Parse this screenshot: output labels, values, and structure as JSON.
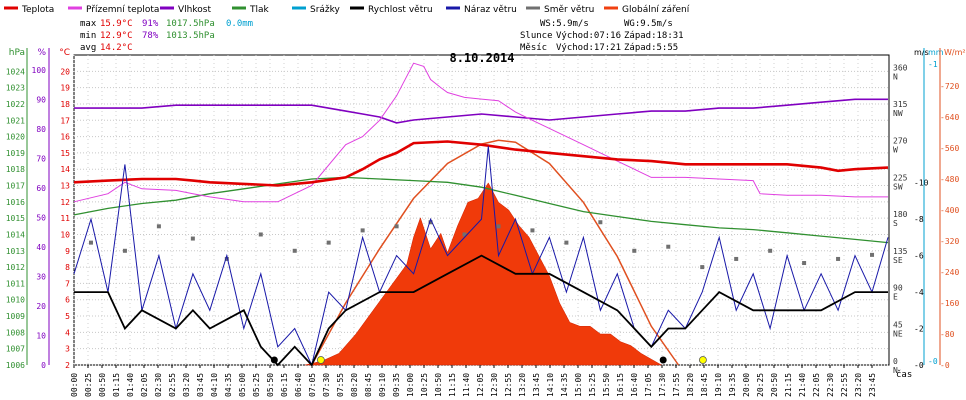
{
  "chart_data": {
    "type": "line",
    "title": "8.10.2014",
    "xlabel": "čas",
    "legend": [
      {
        "key": "temp",
        "label": "Teplota",
        "color": "#e00000"
      },
      {
        "key": "feels",
        "label": "Přízemní teplota",
        "color": "#e040e0"
      },
      {
        "key": "hum",
        "label": "Vlhkost",
        "color": "#8000c0"
      },
      {
        "key": "press",
        "label": "Tlak",
        "color": "#309030"
      },
      {
        "key": "rain",
        "label": "Srážky",
        "color": "#00a0d0"
      },
      {
        "key": "wind",
        "label": "Rychlost větru",
        "color": "#000000"
      },
      {
        "key": "gust",
        "label": "Náraz větru",
        "color": "#1818a8"
      },
      {
        "key": "dir",
        "label": "Směr větru",
        "color": "#707070"
      },
      {
        "key": "solar",
        "label": "Globální záření",
        "color": "#f04010"
      }
    ],
    "stats": {
      "max_label": "max",
      "max_temp": "15.9°C",
      "max_hum": "91%",
      "max_press": "1017.5hPa",
      "max_rain": "0.0mm",
      "min_label": "min",
      "min_temp": "12.9°C",
      "min_hum": "78%",
      "min_press": "1013.5hPa",
      "avg_label": "avg",
      "avg_temp": "14.2°C",
      "ws": "WS:5.9m/s",
      "wg": "WG:9.5m/s",
      "sun_label": "Slunce",
      "sun_rise": "Východ:07:16",
      "sun_set": "Západ:18:31",
      "moon_label": "Měsíc",
      "moon_rise": "Východ:17:21",
      "moon_set": "Západ:5:55"
    },
    "axes": {
      "hpa": {
        "unit": "hPa",
        "min": 1006,
        "max": 1025,
        "ticks": [
          1006,
          1007,
          1008,
          1009,
          1010,
          1011,
          1012,
          1013,
          1014,
          1015,
          1016,
          1017,
          1018,
          1019,
          1020,
          1021,
          1022,
          1023,
          1024
        ],
        "color": "#309030"
      },
      "pct": {
        "unit": "%",
        "min": 0,
        "max": 105,
        "ticks": [
          0,
          10,
          20,
          30,
          40,
          50,
          60,
          70,
          80,
          90,
          100
        ],
        "color": "#8000c0"
      },
      "deg": {
        "unit": "°C",
        "min": 2,
        "max": 21,
        "ticks": [
          2,
          3,
          4,
          5,
          6,
          7,
          8,
          9,
          10,
          11,
          12,
          13,
          14,
          15,
          16,
          17,
          18,
          19,
          20
        ],
        "color": "#e00000"
      },
      "dir": {
        "min": 0,
        "max": 380,
        "ticks": [
          {
            "v": 0,
            "l": "0",
            "s": "N"
          },
          {
            "v": 45,
            "l": "45",
            "s": "NE"
          },
          {
            "v": 90,
            "l": "90",
            "s": "E"
          },
          {
            "v": 135,
            "l": "135",
            "s": "SE"
          },
          {
            "v": 180,
            "l": "180",
            "s": "S"
          },
          {
            "v": 225,
            "l": "225",
            "s": "SW"
          },
          {
            "v": 270,
            "l": "270",
            "s": "W"
          },
          {
            "v": 315,
            "l": "315",
            "s": "NW"
          },
          {
            "v": 360,
            "l": "360",
            "s": "N"
          }
        ]
      },
      "ms": {
        "unit": "m/s",
        "min": 0,
        "max": 17,
        "ticks": [
          0,
          2,
          4,
          6,
          8,
          10
        ],
        "color": "#000000"
      },
      "mm": {
        "unit": "mm",
        "ticks_labels": [
          "0",
          "1"
        ],
        "color": "#00a0d0"
      },
      "wm2": {
        "unit": "W/m²",
        "min": 0,
        "max": 800,
        "ticks": [
          0,
          80,
          160,
          240,
          320,
          400,
          480,
          560,
          640,
          720
        ],
        "color": "#e05020"
      }
    },
    "x_ticks": [
      "00:00",
      "00:25",
      "00:50",
      "01:15",
      "01:40",
      "02:05",
      "02:30",
      "02:55",
      "03:20",
      "03:45",
      "04:10",
      "04:35",
      "05:00",
      "05:25",
      "05:50",
      "06:15",
      "06:40",
      "07:05",
      "07:30",
      "07:55",
      "08:20",
      "08:45",
      "09:10",
      "09:35",
      "10:00",
      "10:25",
      "10:50",
      "11:15",
      "11:40",
      "12:05",
      "12:30",
      "12:55",
      "13:20",
      "13:45",
      "14:10",
      "14:35",
      "15:00",
      "15:25",
      "15:50",
      "16:15",
      "16:40",
      "17:05",
      "17:30",
      "17:55",
      "18:20",
      "18:45",
      "19:10",
      "19:35",
      "20:00",
      "20:25",
      "20:50",
      "21:15",
      "21:40",
      "22:05",
      "22:30",
      "22:55",
      "23:20",
      "23:45"
    ],
    "series": {
      "temp": {
        "unit": "°C",
        "x_hours": [
          0,
          1,
          2,
          3,
          3.5,
          4,
          5,
          6,
          7,
          8,
          8.5,
          9,
          9.5,
          10,
          11,
          12,
          13,
          14,
          15,
          16,
          17,
          18,
          19,
          20,
          21,
          22,
          22.5,
          23,
          23.97
        ],
        "values": [
          13.2,
          13.3,
          13.4,
          13.4,
          13.3,
          13.2,
          13.1,
          13.0,
          13.2,
          13.5,
          14.0,
          14.6,
          15.0,
          15.6,
          15.7,
          15.5,
          15.2,
          15.0,
          14.8,
          14.6,
          14.5,
          14.3,
          14.3,
          14.3,
          14.3,
          14.1,
          13.9,
          14.0,
          14.1
        ]
      },
      "feels": {
        "unit": "°C",
        "x_hours": [
          0,
          1,
          1.5,
          2,
          3,
          3.5,
          4,
          5,
          6,
          7,
          8,
          8.5,
          9,
          9.5,
          10,
          10.3,
          10.5,
          10.8,
          11,
          11.5,
          12,
          12.5,
          13,
          13.5,
          14,
          14.5,
          15,
          15.5,
          16,
          16.5,
          17,
          17.5,
          18,
          19,
          20,
          20.2,
          21,
          22,
          23,
          23.97
        ],
        "values": [
          12.0,
          12.5,
          13.2,
          12.8,
          12.7,
          12.5,
          12.3,
          12.0,
          12.0,
          13.0,
          15.5,
          16.0,
          17.0,
          18.5,
          20.5,
          20.3,
          19.5,
          19.0,
          18.7,
          18.4,
          18.3,
          18.2,
          17.5,
          17.0,
          16.5,
          16.0,
          15.5,
          15.0,
          14.5,
          14.0,
          13.5,
          13.5,
          13.5,
          13.4,
          13.3,
          12.5,
          12.4,
          12.4,
          12.3,
          12.3
        ]
      },
      "hum": {
        "unit": "%",
        "x_hours": [
          0,
          2,
          3,
          4,
          5,
          6,
          7,
          8,
          8.5,
          9,
          9.5,
          10,
          11,
          12,
          13,
          14,
          15,
          16,
          17,
          18,
          19,
          20,
          21,
          22,
          23,
          23.97
        ],
        "values": [
          87,
          87,
          88,
          88,
          88,
          88,
          88,
          86,
          85,
          84,
          82,
          83,
          84,
          85,
          84,
          83,
          84,
          85,
          86,
          86,
          87,
          87,
          88,
          89,
          90,
          90
        ]
      },
      "press": {
        "unit": "hPa",
        "x_hours": [
          0,
          1,
          2,
          3,
          4,
          5,
          6,
          7,
          8,
          9,
          10,
          11,
          12,
          13,
          14,
          15,
          16,
          17,
          18,
          19,
          20,
          21,
          22,
          23,
          23.97
        ],
        "values": [
          1015.2,
          1015.6,
          1015.9,
          1016.1,
          1016.5,
          1016.8,
          1017.1,
          1017.4,
          1017.5,
          1017.4,
          1017.3,
          1017.2,
          1016.9,
          1016.4,
          1015.9,
          1015.4,
          1015.1,
          1014.8,
          1014.6,
          1014.4,
          1014.3,
          1014.1,
          1013.9,
          1013.7,
          1013.5
        ]
      },
      "wind": {
        "unit": "m/s",
        "x_hours": [
          0,
          1,
          1.5,
          2,
          3,
          3.5,
          4,
          5,
          5.5,
          6,
          6.5,
          7,
          7.5,
          8,
          9,
          10,
          11,
          12,
          13,
          14,
          15,
          16,
          16.5,
          17,
          17.5,
          18,
          18.5,
          19,
          20,
          21,
          22,
          23,
          23.97
        ],
        "values": [
          4,
          4,
          2,
          3,
          2,
          3,
          2,
          3,
          1,
          0,
          1,
          0,
          2,
          3,
          4,
          4,
          5,
          6,
          5,
          5,
          4,
          3,
          2,
          1,
          2,
          2,
          3,
          4,
          3,
          3,
          3,
          4,
          4
        ]
      },
      "gust": {
        "unit": "m/s",
        "x_hours": [
          0,
          0.5,
          1,
          1.5,
          2,
          2.5,
          3,
          3.5,
          4,
          4.5,
          5,
          5.5,
          6,
          6.5,
          7,
          7.5,
          8,
          8.5,
          9,
          9.5,
          10,
          10.5,
          11,
          11.5,
          12,
          12.2,
          12.5,
          13,
          13.5,
          14,
          14.5,
          15,
          15.5,
          16,
          16.5,
          17,
          17.5,
          18,
          18.5,
          19,
          19.5,
          20,
          20.5,
          21,
          21.5,
          22,
          22.5,
          23,
          23.5,
          23.97
        ],
        "values": [
          5,
          8,
          4,
          11,
          3,
          6,
          2,
          5,
          3,
          6,
          2,
          5,
          1,
          2,
          0,
          4,
          3,
          7,
          4,
          6,
          5,
          8,
          6,
          7,
          8,
          12,
          6,
          8,
          5,
          7,
          4,
          7,
          3,
          5,
          2,
          1,
          3,
          2,
          4,
          7,
          3,
          5,
          2,
          6,
          3,
          5,
          3,
          6,
          4,
          7
        ]
      },
      "dir": {
        "unit": "°",
        "x_hours": [
          0.5,
          1.5,
          2.5,
          3.5,
          4.5,
          5.5,
          6.5,
          7.5,
          8.5,
          9.5,
          10.5,
          11.5,
          12.5,
          13.5,
          14.5,
          15.5,
          16.5,
          17.5,
          18.5,
          19.5,
          20.5,
          21.5,
          22.5,
          23.5
        ],
        "values": [
          150,
          140,
          170,
          155,
          130,
          160,
          140,
          150,
          165,
          170,
          175,
          160,
          170,
          165,
          150,
          175,
          140,
          145,
          120,
          130,
          140,
          125,
          130,
          135
        ]
      },
      "solar": {
        "unit": "W/m²",
        "x_hours": [
          6.8,
          7.3,
          7.8,
          8.3,
          8.8,
          9.3,
          9.8,
          10.0,
          10.2,
          10.5,
          10.8,
          11.0,
          11.3,
          11.6,
          11.9,
          12.2,
          12.5,
          12.8,
          13.1,
          13.4,
          13.7,
          14.0,
          14.3,
          14.6,
          14.9,
          15.2,
          15.5,
          15.8,
          16.1,
          16.4,
          16.7,
          17.0,
          17.3
        ],
        "values": [
          0,
          10,
          30,
          80,
          140,
          200,
          260,
          330,
          380,
          300,
          340,
          290,
          360,
          420,
          430,
          470,
          420,
          400,
          360,
          330,
          280,
          230,
          160,
          110,
          100,
          100,
          80,
          80,
          60,
          50,
          30,
          15,
          0
        ]
      },
      "solar_theoretical": {
        "unit": "W/m²",
        "x_hours": [
          7.0,
          8.0,
          9.0,
          10.0,
          11.0,
          12.0,
          12.5,
          13.0,
          14.0,
          15.0,
          16.0,
          17.0,
          17.8
        ],
        "values": [
          0,
          160,
          300,
          430,
          520,
          570,
          580,
          575,
          520,
          420,
          280,
          100,
          0
        ]
      }
    },
    "events": [
      {
        "time_h": 5.9,
        "kind": "moon-set",
        "label": "moon"
      },
      {
        "time_h": 7.27,
        "kind": "sun-rise",
        "label": "sun"
      },
      {
        "time_h": 17.35,
        "kind": "moon-rise",
        "label": "moon"
      },
      {
        "time_h": 18.52,
        "kind": "sun-set",
        "label": "sun"
      }
    ]
  }
}
